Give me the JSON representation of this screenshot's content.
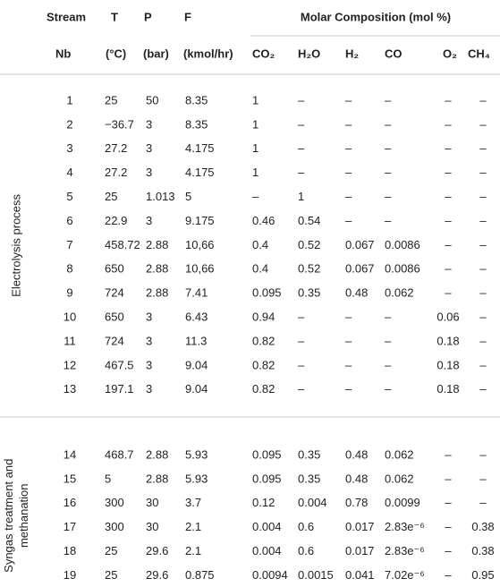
{
  "header": {
    "row1": [
      "Stream",
      "T",
      "P",
      "F",
      "Molar Composition (mol %)"
    ],
    "row2": [
      "Nb",
      "(°C)",
      "(bar)",
      "(kmol/hr)",
      "CO₂",
      "H₂O",
      "H₂",
      "CO",
      "O₂",
      "CH₄"
    ]
  },
  "groups": [
    {
      "label_lines": [
        "Electrolysis process"
      ],
      "rows": [
        [
          "1",
          "25",
          "50",
          "8.35",
          "1",
          "–",
          "–",
          "–",
          "–",
          "–"
        ],
        [
          "2",
          "−36.7",
          "3",
          "8.35",
          "1",
          "–",
          "–",
          "–",
          "–",
          "–"
        ],
        [
          "3",
          "27.2",
          "3",
          "4.175",
          "1",
          "–",
          "–",
          "–",
          "–",
          "–"
        ],
        [
          "4",
          "27.2",
          "3",
          "4.175",
          "1",
          "–",
          "–",
          "–",
          "–",
          "–"
        ],
        [
          "5",
          "25",
          "1.013",
          "5",
          "–",
          "1",
          "–",
          "–",
          "–",
          "–"
        ],
        [
          "6",
          "22.9",
          "3",
          "9.175",
          "0.46",
          "0.54",
          "–",
          "–",
          "–",
          "–"
        ],
        [
          "7",
          "458.72",
          "2.88",
          "10,66",
          "0.4",
          "0.52",
          "0.067",
          "0.0086",
          "–",
          "–"
        ],
        [
          "8",
          "650",
          "2.88",
          "10,66",
          "0.4",
          "0.52",
          "0.067",
          "0.0086",
          "–",
          "–"
        ],
        [
          "9",
          "724",
          "2.88",
          "7.41",
          "0.095",
          "0.35",
          "0.48",
          "0.062",
          "–",
          "–"
        ],
        [
          "10",
          "650",
          "3",
          "6.43",
          "0.94",
          "–",
          "–",
          "–",
          "0.06",
          "–"
        ],
        [
          "11",
          "724",
          "3",
          "11.3",
          "0.82",
          "–",
          "–",
          "–",
          "0.18",
          "–"
        ],
        [
          "12",
          "467.5",
          "3",
          "9.04",
          "0.82",
          "–",
          "–",
          "–",
          "0.18",
          "–"
        ],
        [
          "13",
          "197.1",
          "3",
          "9.04",
          "0.82",
          "–",
          "–",
          "–",
          "0.18",
          "–"
        ]
      ]
    },
    {
      "label_lines": [
        "Syngas treatment and",
        "methanation"
      ],
      "rows": [
        [
          "14",
          "468.7",
          "2.88",
          "5.93",
          "0.095",
          "0.35",
          "0.48",
          "0.062",
          "–",
          "–"
        ],
        [
          "15",
          "5",
          "2.88",
          "5.93",
          "0.095",
          "0.35",
          "0.48",
          "0.062",
          "–",
          "–"
        ],
        [
          "16",
          "300",
          "30",
          "3.7",
          "0.12",
          "0.004",
          "0.78",
          "0.0099",
          "–",
          "–"
        ],
        [
          "17",
          "300",
          "30",
          "2.1",
          "0.004",
          "0.6",
          "0.017",
          "2.83e⁻⁶",
          "–",
          "0.38"
        ],
        [
          "18",
          "25",
          "29.6",
          "2.1",
          "0.004",
          "0.6",
          "0.017",
          "2.83e⁻⁶",
          "–",
          "0.38"
        ],
        [
          "19",
          "25",
          "29.6",
          "0.875",
          "0.0094",
          "0.0015",
          "0.041",
          "7.02e⁻⁶",
          "–",
          "0.95"
        ]
      ]
    }
  ]
}
